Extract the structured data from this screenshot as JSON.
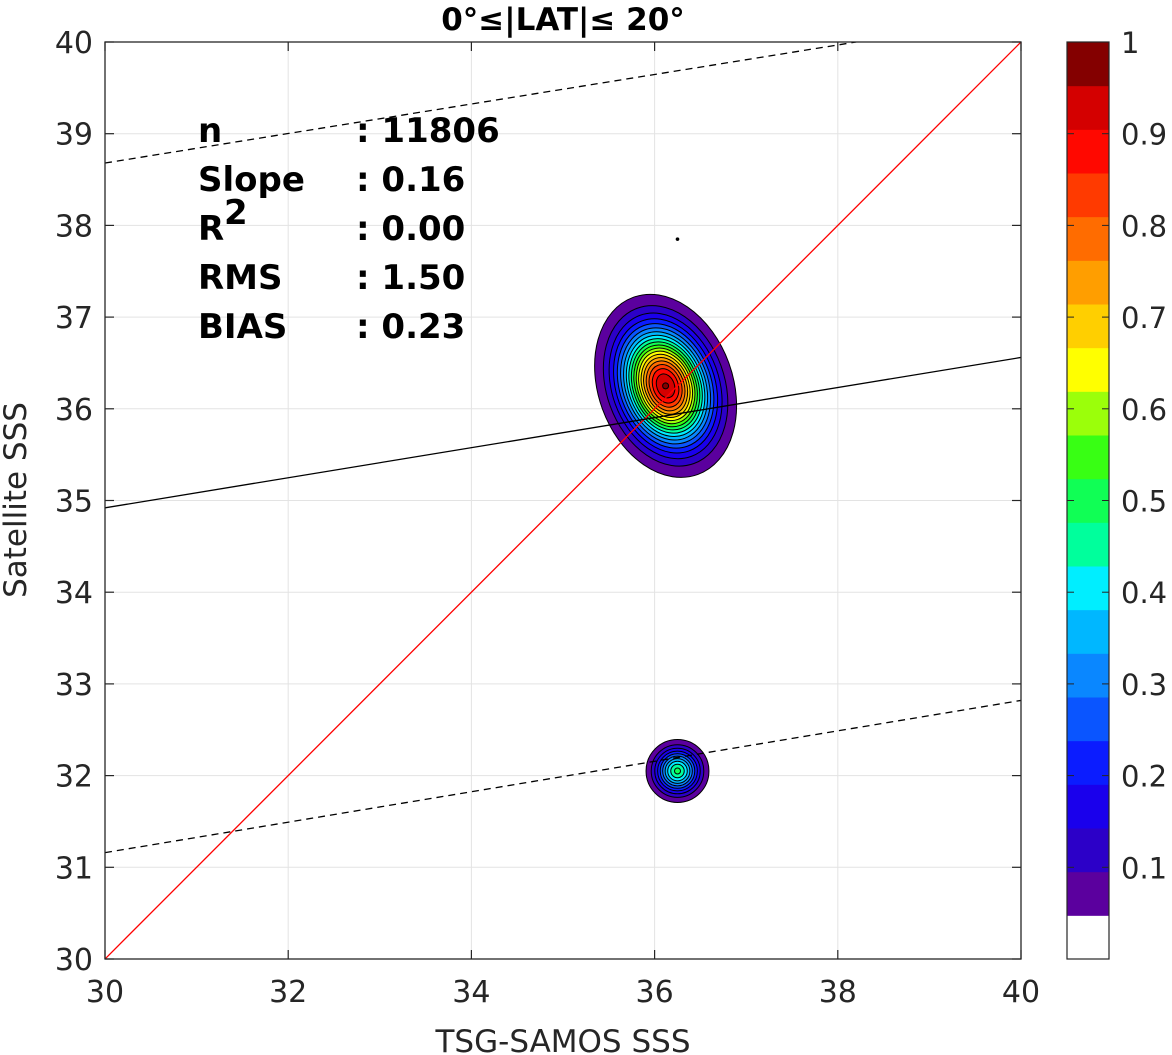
{
  "chart_data": {
    "type": "contour",
    "title": "0°≤|LAT|≤ 20°",
    "xlabel": "TSG-SAMOS SSS",
    "ylabel": "Satellite SSS",
    "xlim": [
      30,
      40
    ],
    "ylim": [
      30,
      40
    ],
    "x_ticks": [
      "30",
      "32",
      "34",
      "36",
      "38",
      "40"
    ],
    "y_ticks": [
      "30",
      "31",
      "32",
      "33",
      "34",
      "35",
      "36",
      "37",
      "38",
      "39",
      "40"
    ],
    "grid": true,
    "stats": [
      {
        "label": "n",
        "value": ": 11806"
      },
      {
        "label": "Slope",
        "value": ": 0.16"
      },
      {
        "label": "R",
        "sup": "2",
        "value": ": 0.00"
      },
      {
        "label": "RMS",
        "value": ": 1.50"
      },
      {
        "label": "BIAS",
        "value": ": 0.23"
      }
    ],
    "reference_lines": [
      {
        "kind": "one-to-one",
        "color": "#ff0000",
        "x": [
          30,
          40
        ],
        "y": [
          30,
          40
        ]
      },
      {
        "kind": "fit",
        "color": "#000000",
        "x": [
          30,
          40
        ],
        "y": [
          34.92,
          36.56
        ]
      },
      {
        "kind": "fit-upper",
        "color": "#000000",
        "dash": true,
        "x": [
          30,
          38.2
        ],
        "y": [
          38.68,
          40
        ]
      },
      {
        "kind": "fit-lower",
        "color": "#000000",
        "dash": true,
        "x": [
          30,
          40
        ],
        "y": [
          31.16,
          32.82
        ]
      }
    ],
    "density_peaks": [
      {
        "x": 36.12,
        "y": 36.25,
        "peak": 1.0,
        "sx": 0.3,
        "sy": 0.42,
        "rot": 0.35
      },
      {
        "x": 36.25,
        "y": 32.05,
        "peak": 0.5,
        "sx": 0.16,
        "sy": 0.16,
        "rot": 0.0
      },
      {
        "x": 36.25,
        "y": 37.85,
        "peak": 0.06,
        "sx": 0.01,
        "sy": 0.01,
        "rot": 0.0
      }
    ],
    "colorbar": {
      "levels": [
        0,
        0.05,
        0.1,
        0.15,
        0.2,
        0.25,
        0.3,
        0.35,
        0.4,
        0.45,
        0.5,
        0.55,
        0.6,
        0.65,
        0.7,
        0.75,
        0.8,
        0.85,
        0.9,
        0.95,
        1.0
      ],
      "colors": [
        "#ffffff",
        "#5b009e",
        "#2c00c8",
        "#1a00ec",
        "#0b1cff",
        "#0a55ff",
        "#0a87ff",
        "#00b7ff",
        "#00eeff",
        "#00ff9c",
        "#10ff55",
        "#38ff14",
        "#9bff0a",
        "#ffff00",
        "#ffcf00",
        "#ff9e00",
        "#ff6c00",
        "#ff3a00",
        "#ff0800",
        "#d40000",
        "#840000"
      ],
      "tick_labels": [
        "0.1",
        "0.2",
        "0.3",
        "0.4",
        "0.5",
        "0.6",
        "0.7",
        "0.8",
        "0.9",
        "1"
      ],
      "tick_values": [
        0.1,
        0.2,
        0.3,
        0.4,
        0.5,
        0.6,
        0.7,
        0.8,
        0.9,
        1.0
      ]
    }
  }
}
